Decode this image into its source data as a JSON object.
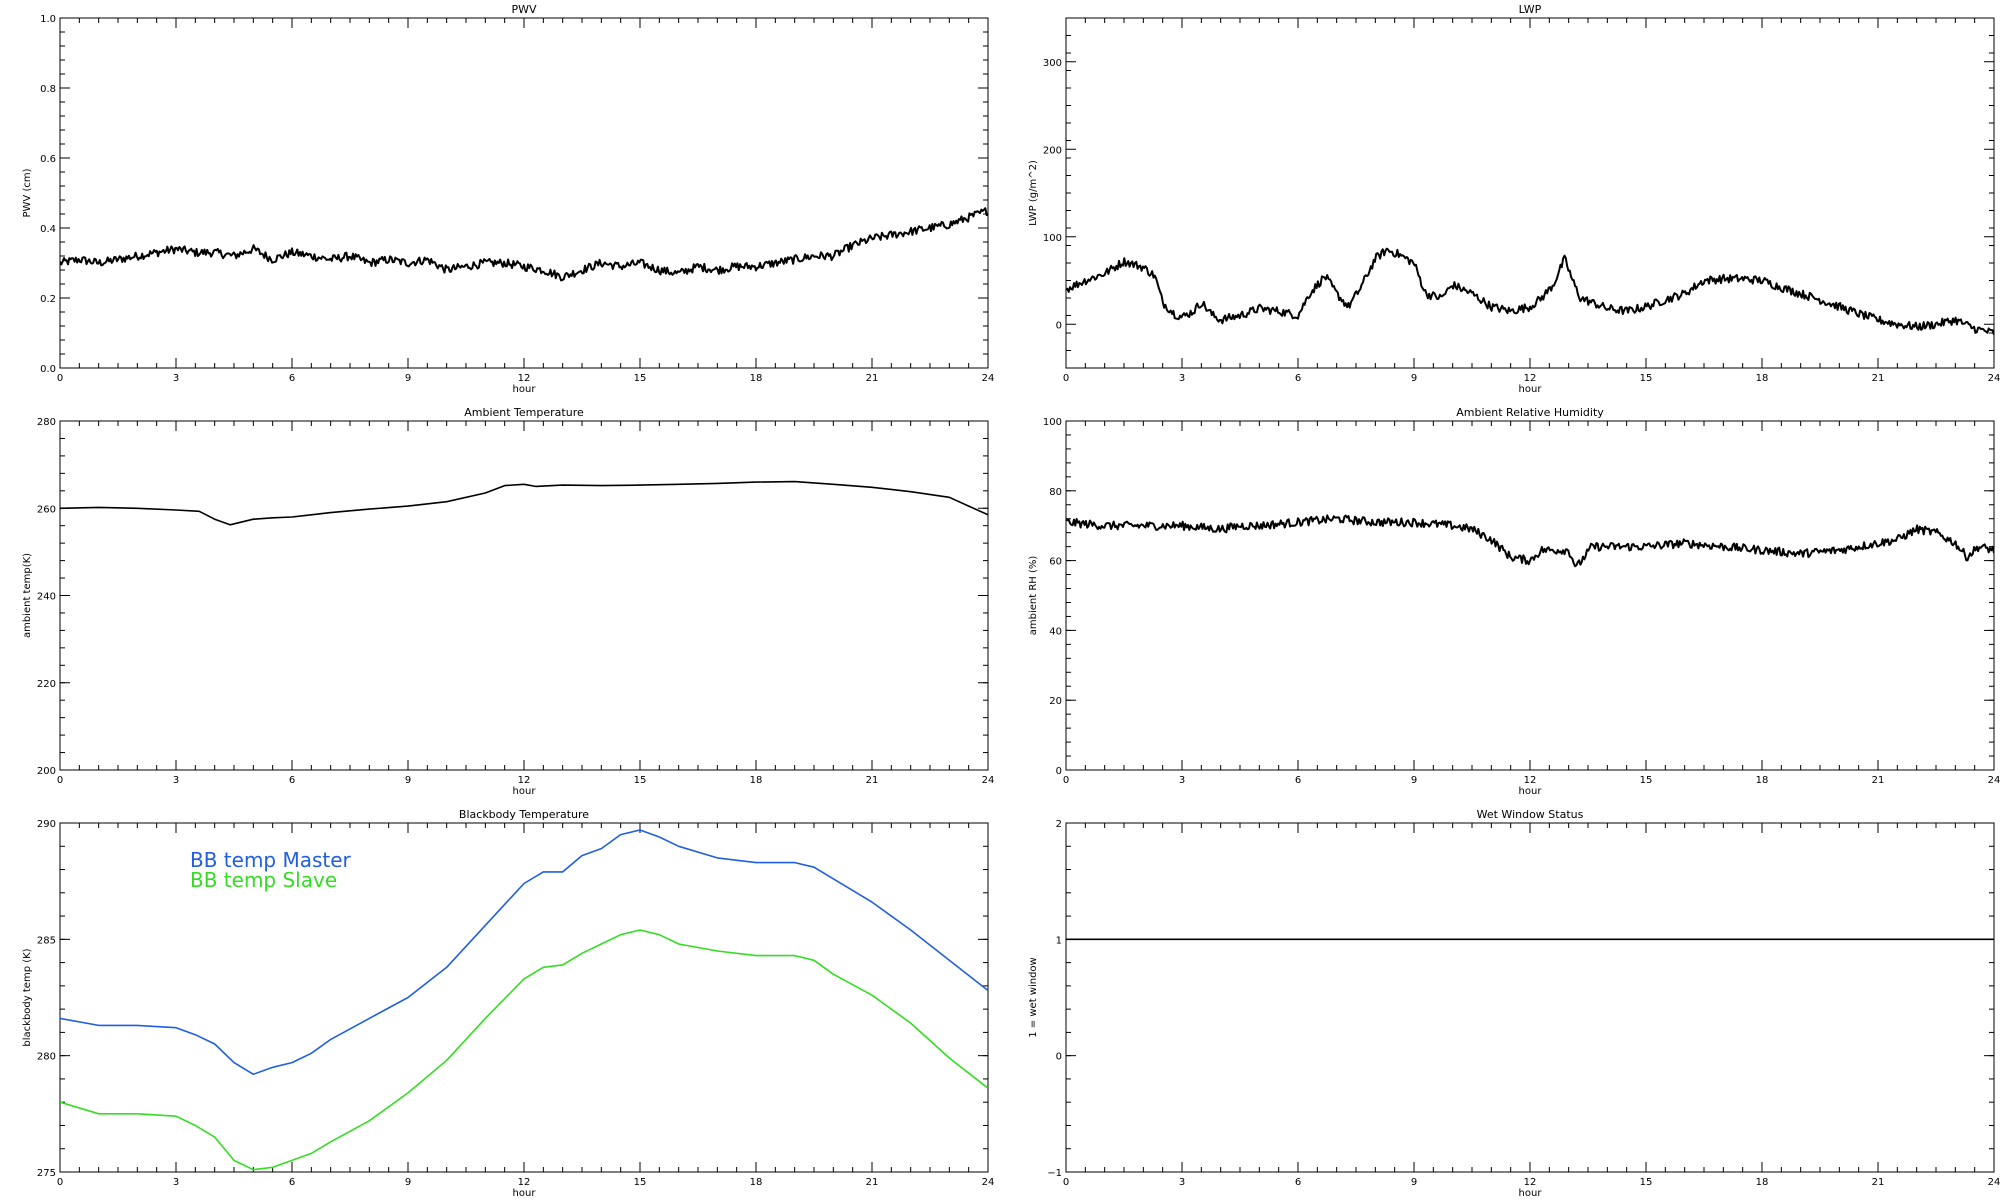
{
  "chart_data": [
    {
      "type": "line",
      "title": "PWV",
      "xlabel": "hour",
      "ylabel": "PWV (cm)",
      "xlim": [
        0,
        24
      ],
      "ylim": [
        0.0,
        1.0
      ],
      "xticks": [
        "0",
        "3",
        "6",
        "9",
        "12",
        "15",
        "18",
        "21",
        "24"
      ],
      "yticks": [
        "0.0",
        "0.2",
        "0.4",
        "0.6",
        "0.8",
        "1.0"
      ],
      "legend": null,
      "series": [
        {
          "name": "",
          "color": "#000000",
          "noisy": true,
          "x": [
            0,
            0.5,
            1,
            1.5,
            2,
            2.5,
            3,
            3.5,
            4,
            4.5,
            5,
            5.5,
            6,
            6.5,
            7,
            7.5,
            8,
            8.5,
            9,
            9.5,
            10,
            10.5,
            11,
            11.5,
            12,
            12.5,
            13,
            13.5,
            14,
            14.5,
            15,
            15.5,
            16,
            16.5,
            17,
            17.5,
            18,
            18.5,
            19,
            19.5,
            20,
            20.5,
            21,
            21.5,
            22,
            22.5,
            23,
            23.5,
            24
          ],
          "y": [
            0.3,
            0.31,
            0.3,
            0.31,
            0.32,
            0.33,
            0.34,
            0.33,
            0.33,
            0.32,
            0.34,
            0.31,
            0.33,
            0.32,
            0.31,
            0.32,
            0.3,
            0.31,
            0.3,
            0.31,
            0.28,
            0.29,
            0.3,
            0.3,
            0.29,
            0.28,
            0.26,
            0.28,
            0.3,
            0.29,
            0.3,
            0.28,
            0.27,
            0.29,
            0.28,
            0.29,
            0.29,
            0.3,
            0.31,
            0.32,
            0.32,
            0.35,
            0.37,
            0.38,
            0.39,
            0.4,
            0.41,
            0.43,
            0.45
          ]
        }
      ]
    },
    {
      "type": "line",
      "title": "LWP",
      "xlabel": "hour",
      "ylabel": "LWP (g/m^2)",
      "xlim": [
        0,
        24
      ],
      "ylim": [
        -50,
        350
      ],
      "xticks": [
        "0",
        "3",
        "6",
        "9",
        "12",
        "15",
        "18",
        "21",
        "24"
      ],
      "yticks": [
        "0",
        "100",
        "200",
        "300"
      ],
      "legend": null,
      "series": [
        {
          "name": "",
          "color": "#000000",
          "noisy": true,
          "x": [
            0,
            0.5,
            1,
            1.5,
            2,
            2.3,
            2.5,
            2.8,
            3,
            3.3,
            3.5,
            3.8,
            4,
            4.5,
            5,
            5.5,
            6,
            6.3,
            6.7,
            7,
            7.3,
            7.6,
            8,
            8.3,
            8.6,
            9,
            9.3,
            9.7,
            10,
            10.5,
            11,
            11.5,
            12,
            12.3,
            12.6,
            12.9,
            13.1,
            13.3,
            13.6,
            14,
            14.5,
            15,
            15.5,
            16,
            16.5,
            17,
            17.5,
            18,
            18.5,
            19,
            19.5,
            20,
            20.5,
            21,
            21.5,
            22,
            22.5,
            23,
            23.5,
            24
          ],
          "y": [
            40,
            50,
            58,
            72,
            65,
            55,
            25,
            12,
            8,
            15,
            25,
            10,
            5,
            10,
            18,
            15,
            10,
            35,
            55,
            35,
            20,
            40,
            75,
            85,
            80,
            70,
            35,
            30,
            45,
            35,
            20,
            15,
            20,
            30,
            45,
            75,
            50,
            30,
            25,
            18,
            15,
            20,
            28,
            35,
            50,
            52,
            52,
            50,
            42,
            35,
            28,
            20,
            12,
            5,
            0,
            -3,
            0,
            5,
            -5,
            -10
          ]
        }
      ]
    },
    {
      "type": "line",
      "title": "Ambient Temperature",
      "xlabel": "hour",
      "ylabel": "ambient temp(K)",
      "xlim": [
        0,
        24
      ],
      "ylim": [
        200,
        280
      ],
      "xticks": [
        "0",
        "3",
        "6",
        "9",
        "12",
        "15",
        "18",
        "21",
        "24"
      ],
      "yticks": [
        "200",
        "220",
        "240",
        "260",
        "280"
      ],
      "legend": null,
      "series": [
        {
          "name": "",
          "color": "#000000",
          "noisy": false,
          "x": [
            0,
            1,
            2,
            3,
            3.6,
            4,
            4.4,
            5,
            5.5,
            6,
            6.5,
            7,
            8,
            9,
            10,
            11,
            11.5,
            12,
            12.3,
            13,
            14,
            15,
            16,
            17,
            18,
            19,
            20,
            21,
            22,
            23,
            23.5,
            24
          ],
          "y": [
            260,
            260.2,
            260,
            259.6,
            259.3,
            257.5,
            256.2,
            257.5,
            257.8,
            258,
            258.5,
            259,
            259.8,
            260.5,
            261.5,
            263.5,
            265.2,
            265.5,
            265,
            265.3,
            265.2,
            265.3,
            265.5,
            265.7,
            266,
            266.1,
            265.5,
            264.8,
            263.8,
            262.5,
            260.5,
            258.5
          ]
        }
      ]
    },
    {
      "type": "line",
      "title": "Ambient Relative Humidity",
      "xlabel": "hour",
      "ylabel": "ambient RH (%)",
      "xlim": [
        0,
        24
      ],
      "ylim": [
        0,
        100
      ],
      "xticks": [
        "0",
        "3",
        "6",
        "9",
        "12",
        "15",
        "18",
        "21",
        "24"
      ],
      "yticks": [
        "0",
        "20",
        "40",
        "60",
        "80",
        "100"
      ],
      "legend": null,
      "series": [
        {
          "name": "",
          "color": "#000000",
          "noisy": true,
          "x": [
            0,
            1,
            2,
            3,
            4,
            4.5,
            5,
            6,
            7,
            8,
            9,
            10,
            10.5,
            11,
            11.5,
            12,
            12.3,
            13,
            13.2,
            13.6,
            14,
            15,
            16,
            17,
            18,
            19,
            20,
            21,
            21.5,
            22,
            22.5,
            23,
            23.3,
            23.6,
            24
          ],
          "y": [
            71,
            70,
            70,
            70,
            69,
            70,
            70,
            71,
            72,
            71,
            71,
            70,
            69,
            66,
            61,
            60,
            63,
            63,
            58,
            64,
            64,
            64,
            65,
            64,
            63,
            62,
            63,
            65,
            66,
            69,
            68,
            65,
            61,
            64,
            63
          ]
        }
      ]
    },
    {
      "type": "line",
      "title": "Blackbody Temperature",
      "xlabel": "hour",
      "ylabel": "blackbody temp (K)",
      "xlim": [
        0,
        24
      ],
      "ylim": [
        275,
        290
      ],
      "xticks": [
        "0",
        "3",
        "6",
        "9",
        "12",
        "15",
        "18",
        "21",
        "24"
      ],
      "yticks": [
        "275",
        "280",
        "285",
        "290"
      ],
      "legend": "upper-left",
      "series": [
        {
          "name": "BB temp Master",
          "color": "#1f5fe0",
          "noisy": false,
          "x": [
            0,
            1,
            2,
            3,
            3.5,
            4,
            4.5,
            5,
            5.5,
            6,
            6.5,
            7,
            8,
            9,
            10,
            11,
            12,
            12.5,
            13,
            13.5,
            14,
            14.5,
            15,
            15.5,
            16,
            17,
            18,
            19,
            19.5,
            20,
            21,
            22,
            23,
            24
          ],
          "y": [
            281.6,
            281.3,
            281.3,
            281.2,
            280.9,
            280.5,
            279.7,
            279.2,
            279.5,
            279.7,
            280.1,
            280.7,
            281.6,
            282.5,
            283.8,
            285.6,
            287.4,
            287.9,
            287.9,
            288.6,
            288.9,
            289.5,
            289.7,
            289.4,
            289.0,
            288.5,
            288.3,
            288.3,
            288.1,
            287.6,
            286.6,
            285.4,
            284.1,
            282.8
          ]
        },
        {
          "name": "BB temp Slave",
          "color": "#33dd22",
          "noisy": false,
          "x": [
            0,
            1,
            2,
            3,
            3.5,
            4,
            4.5,
            5,
            5.5,
            6,
            6.5,
            7,
            8,
            9,
            10,
            11,
            12,
            12.5,
            13,
            13.5,
            14,
            14.5,
            15,
            15.5,
            16,
            17,
            18,
            19,
            19.5,
            20,
            21,
            22,
            23,
            24
          ],
          "y": [
            278.0,
            277.5,
            277.5,
            277.4,
            277.0,
            276.5,
            275.5,
            275.1,
            275.2,
            275.5,
            275.8,
            276.3,
            277.2,
            278.4,
            279.8,
            281.6,
            283.3,
            283.8,
            283.9,
            284.4,
            284.8,
            285.2,
            285.4,
            285.2,
            284.8,
            284.5,
            284.3,
            284.3,
            284.1,
            283.5,
            282.6,
            281.4,
            279.9,
            278.6
          ]
        }
      ]
    },
    {
      "type": "line",
      "title": "Wet Window Status",
      "xlabel": "hour",
      "ylabel": "1 = wet window",
      "xlim": [
        0,
        24
      ],
      "ylim": [
        -1,
        2
      ],
      "xticks": [
        "0",
        "3",
        "6",
        "9",
        "12",
        "15",
        "18",
        "21",
        "24"
      ],
      "yticks": [
        "−1",
        "0",
        "1",
        "2"
      ],
      "legend": null,
      "series": [
        {
          "name": "",
          "color": "#000000",
          "noisy": false,
          "x": [
            0,
            24
          ],
          "y": [
            1,
            1
          ]
        }
      ]
    }
  ]
}
